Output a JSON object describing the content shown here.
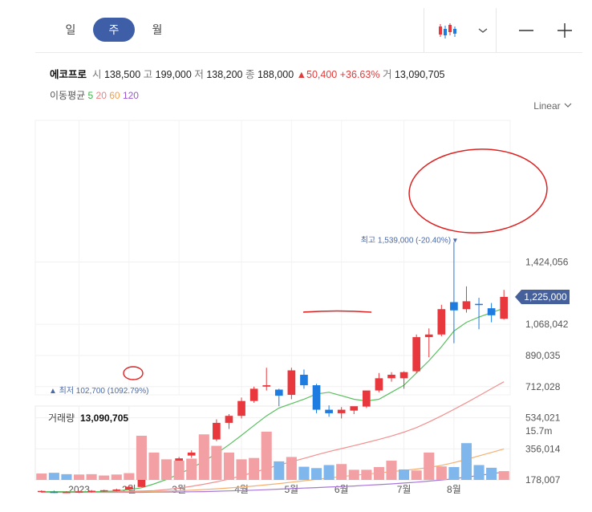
{
  "toolbar": {
    "periods": [
      {
        "label": "일"
      },
      {
        "label": "주"
      },
      {
        "label": "월"
      }
    ],
    "active_period": "주"
  },
  "quote": {
    "name": "에코프로",
    "open_label": "시",
    "open": "138,500",
    "high_label": "고",
    "high": "199,000",
    "low_label": "저",
    "low": "138,200",
    "close_label": "종",
    "close": "188,000",
    "change": "50,400",
    "change_pct": "+36.63%",
    "volume_label": "거",
    "volume": "13,090,705"
  },
  "moving_average": {
    "label": "이동평균",
    "periods": [
      {
        "label": "5",
        "color": "#3cb44b"
      },
      {
        "label": "20",
        "color": "#f08080"
      },
      {
        "label": "60",
        "color": "#f0a050"
      },
      {
        "label": "120",
        "color": "#9b59d0"
      }
    ]
  },
  "scale_mode": "Linear",
  "colors": {
    "up": "#e8383d",
    "down": "#1e7be0",
    "accent": "#3f5ea8"
  },
  "chart_data": {
    "type": "candlestick",
    "x_labels": [
      "2023",
      "2월",
      "3월",
      "4월",
      "5월",
      "6월",
      "7월",
      "8월"
    ],
    "y_ticks": [
      178007,
      356014,
      534021,
      712028,
      890035,
      1068042,
      1424056
    ],
    "y_tick_labels": [
      "178,007",
      "356,014",
      "534,021",
      "712,028",
      "890,035",
      "1,068,042",
      "1,424,056"
    ],
    "ylim": [
      88000,
      1645000
    ],
    "current_price": 1225000,
    "current_price_label": "1,225,000",
    "max_label": "최고 1,539,000 (-20.40%)",
    "max_value": 1539000,
    "min_label": "최저 102,700 (1092.79%)",
    "min_value": 102700,
    "candles": [
      {
        "o": 113000,
        "h": 119000,
        "l": 106000,
        "c": 116000
      },
      {
        "o": 111000,
        "h": 118000,
        "l": 103000,
        "c": 108000
      },
      {
        "o": 108000,
        "h": 115000,
        "l": 102700,
        "c": 110000
      },
      {
        "o": 109000,
        "h": 117000,
        "l": 104000,
        "c": 113000
      },
      {
        "o": 113000,
        "h": 121000,
        "l": 107000,
        "c": 117000
      },
      {
        "o": 117000,
        "h": 123000,
        "l": 110000,
        "c": 120000
      },
      {
        "o": 120000,
        "h": 129000,
        "l": 113000,
        "c": 124000
      },
      {
        "o": 124000,
        "h": 148000,
        "l": 120000,
        "c": 140000
      },
      {
        "o": 138500,
        "h": 199000,
        "l": 138200,
        "c": 188000
      },
      {
        "o": 190000,
        "h": 240000,
        "l": 185000,
        "c": 230000
      },
      {
        "o": 232000,
        "h": 275000,
        "l": 224000,
        "c": 262000
      },
      {
        "o": 262000,
        "h": 310000,
        "l": 255000,
        "c": 302000
      },
      {
        "o": 318000,
        "h": 348000,
        "l": 305000,
        "c": 335000
      },
      {
        "o": 338000,
        "h": 420000,
        "l": 332000,
        "c": 410000
      },
      {
        "o": 410000,
        "h": 525000,
        "l": 400000,
        "c": 505000
      },
      {
        "o": 505000,
        "h": 555000,
        "l": 470000,
        "c": 545000
      },
      {
        "o": 545000,
        "h": 650000,
        "l": 530000,
        "c": 630000
      },
      {
        "o": 630000,
        "h": 712000,
        "l": 620000,
        "c": 700000
      },
      {
        "o": 712000,
        "h": 820000,
        "l": 690000,
        "c": 720000
      },
      {
        "o": 695000,
        "h": 700000,
        "l": 600000,
        "c": 660000
      },
      {
        "o": 665000,
        "h": 820000,
        "l": 640000,
        "c": 805000
      },
      {
        "o": 780000,
        "h": 810000,
        "l": 700000,
        "c": 720000
      },
      {
        "o": 720000,
        "h": 728000,
        "l": 560000,
        "c": 580000
      },
      {
        "o": 580000,
        "h": 605000,
        "l": 540000,
        "c": 560000
      },
      {
        "o": 560000,
        "h": 595000,
        "l": 530000,
        "c": 580000
      },
      {
        "o": 575000,
        "h": 598000,
        "l": 555000,
        "c": 600000
      },
      {
        "o": 598000,
        "h": 680000,
        "l": 590000,
        "c": 690000
      },
      {
        "o": 690000,
        "h": 790000,
        "l": 680000,
        "c": 760000
      },
      {
        "o": 760000,
        "h": 795000,
        "l": 740000,
        "c": 780000
      },
      {
        "o": 760000,
        "h": 800000,
        "l": 700000,
        "c": 795000
      },
      {
        "o": 800000,
        "h": 1010000,
        "l": 790000,
        "c": 995000
      },
      {
        "o": 995000,
        "h": 1045000,
        "l": 880000,
        "c": 1010000
      },
      {
        "o": 1010000,
        "h": 1180000,
        "l": 1000000,
        "c": 1155000
      },
      {
        "o": 1195000,
        "h": 1539000,
        "l": 960000,
        "c": 1148000
      },
      {
        "o": 1155000,
        "h": 1285000,
        "l": 1135000,
        "c": 1200000
      },
      {
        "o": 1185000,
        "h": 1220000,
        "l": 1040000,
        "c": 1180000
      },
      {
        "o": 1160000,
        "h": 1190000,
        "l": 1080000,
        "c": 1120000
      },
      {
        "o": 1100000,
        "h": 1265000,
        "l": 1095000,
        "c": 1225000
      }
    ],
    "ma5": [
      112000,
      112000,
      111000,
      111000,
      112000,
      113000,
      116000,
      123000,
      134000,
      156000,
      181000,
      213000,
      246000,
      286000,
      330000,
      380000,
      434000,
      490000,
      545000,
      590000,
      615000,
      640000,
      670000,
      680000,
      660000,
      640000,
      630000,
      640000,
      680000,
      720000,
      790000,
      860000,
      940000,
      1030000,
      1080000,
      1110000,
      1135000,
      1160000
    ],
    "ma20": [
      112000,
      112000,
      112000,
      112000,
      112000,
      112000,
      112000,
      113000,
      115000,
      118000,
      124000,
      132000,
      142000,
      154000,
      168000,
      184000,
      202000,
      222000,
      243000,
      264000,
      283000,
      302000,
      322000,
      341000,
      358000,
      375000,
      392000,
      410000,
      430000,
      452000,
      478000,
      510000,
      545000,
      582000,
      620000,
      660000,
      700000,
      740000
    ],
    "ma60": [
      110000,
      110000,
      110000,
      110000,
      110000,
      110000,
      110000,
      111000,
      112000,
      113000,
      115000,
      117000,
      120000,
      124000,
      128000,
      133000,
      138000,
      144000,
      151000,
      158000,
      166000,
      174000,
      182000,
      190000,
      198000,
      205000,
      212000,
      219000,
      226000,
      233000,
      241000,
      250000,
      262000,
      278000,
      296000,
      316000,
      336000,
      356000
    ],
    "ma120": [
      108000,
      108000,
      108000,
      108000,
      108000,
      108000,
      108000,
      108000,
      108000,
      109000,
      109000,
      110000,
      111000,
      112000,
      114000,
      116000,
      118000,
      120000,
      123000,
      126000,
      129000,
      132000,
      135000,
      138000,
      141000,
      144000,
      148000,
      152000,
      156000,
      161000,
      166000,
      172000,
      178000,
      186000,
      195000,
      204000,
      214000,
      224000
    ],
    "volume_label": "거래량",
    "volume_value": "13,090,705",
    "volume_tick_label": "15.7m",
    "volume_tick_value": 15700000,
    "volumes": [
      1900000,
      2100000,
      1700000,
      1600000,
      1700000,
      1300000,
      1600000,
      2000000,
      13090705,
      8100000,
      6100000,
      5700000,
      6300000,
      13500000,
      10100000,
      8100000,
      6100000,
      6500000,
      14300000,
      5500000,
      6800000,
      3900000,
      3500000,
      4400000,
      4700000,
      3000000,
      3000000,
      3800000,
      5700000,
      3100000,
      2800000,
      8100000,
      4000000,
      3800000,
      10900000,
      4400000,
      3600000,
      2600000
    ],
    "volume_up": [
      true,
      false,
      false,
      true,
      true,
      true,
      true,
      true,
      true,
      true,
      true,
      true,
      true,
      true,
      true,
      true,
      true,
      true,
      true,
      false,
      true,
      false,
      false,
      false,
      true,
      true,
      true,
      true,
      true,
      false,
      true,
      true,
      true,
      false,
      false,
      false,
      false,
      true
    ]
  }
}
